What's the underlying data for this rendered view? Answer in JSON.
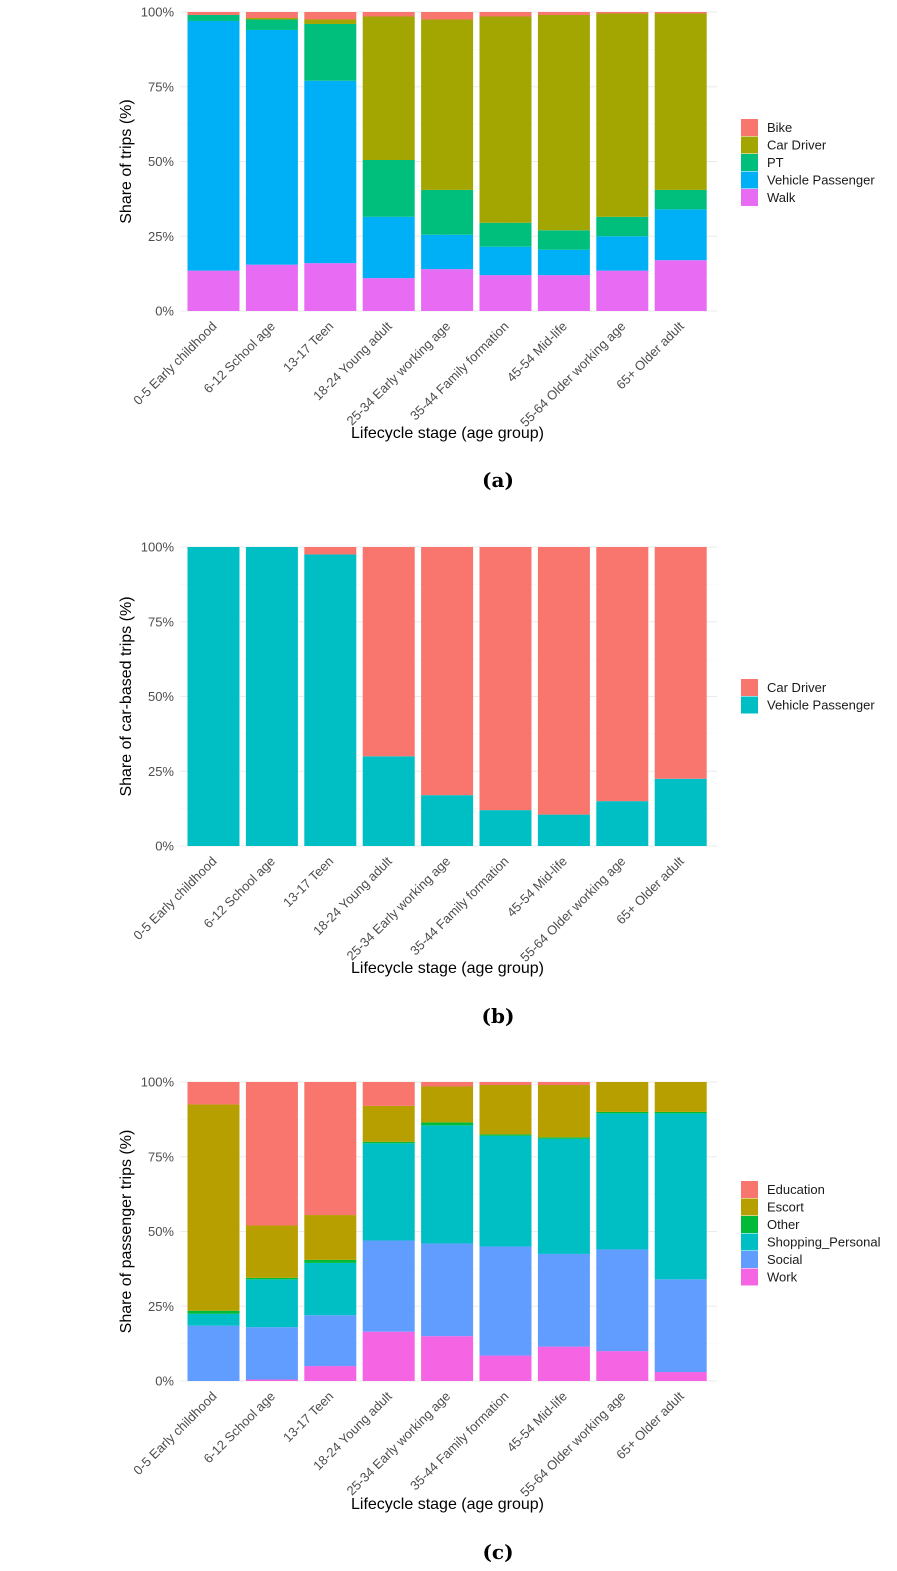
{
  "chart_data": [
    {
      "type": "bar",
      "stacked": true,
      "caption": "(a)",
      "xlabel": "Lifecycle stage (age group)",
      "ylabel": "Share of trips (%)",
      "ylim": [
        0,
        100
      ],
      "y_ticks": [
        "0%",
        "25%",
        "50%",
        "75%",
        "100%"
      ],
      "grid": true,
      "legend_position": "right",
      "categories": [
        "0-5 Early childhood",
        "6-12 School age",
        "13-17 Teen",
        "18-24 Young adult",
        "25-34 Early working age",
        "35-44 Family formation",
        "45-54 Mid-life",
        "55-64 Older working age",
        "65+ Older adult"
      ],
      "series": [
        {
          "name": "Bike",
          "color": "#F8766D",
          "values": [
            1.0,
            2.0,
            2.5,
            1.5,
            2.5,
            1.5,
            1.0,
            0.5,
            0.5
          ]
        },
        {
          "name": "Car Driver",
          "color": "#A3A500",
          "values": [
            0.0,
            0.5,
            1.5,
            48.0,
            57.0,
            69.0,
            72.0,
            68.0,
            59.0
          ]
        },
        {
          "name": "PT",
          "color": "#00BF7D",
          "values": [
            2.0,
            3.5,
            19.0,
            19.0,
            15.0,
            8.0,
            6.5,
            6.5,
            6.5
          ]
        },
        {
          "name": "Vehicle Passenger",
          "color": "#00B0F6",
          "values": [
            83.5,
            78.5,
            61.0,
            20.5,
            11.5,
            9.5,
            8.5,
            11.5,
            17.0
          ]
        },
        {
          "name": "Walk",
          "color": "#E76BF3",
          "values": [
            13.5,
            15.5,
            16.0,
            11.0,
            14.0,
            12.0,
            12.0,
            13.5,
            17.0
          ]
        }
      ]
    },
    {
      "type": "bar",
      "stacked": true,
      "caption": "(b)",
      "xlabel": "Lifecycle stage (age group)",
      "ylabel": "Share of car-based trips (%)",
      "ylim": [
        0,
        100
      ],
      "y_ticks": [
        "0%",
        "25%",
        "50%",
        "75%",
        "100%"
      ],
      "grid": true,
      "legend_position": "right",
      "categories": [
        "0-5 Early childhood",
        "6-12 School age",
        "13-17 Teen",
        "18-24 Young adult",
        "25-34 Early working age",
        "35-44 Family formation",
        "45-54 Mid-life",
        "55-64 Older working age",
        "65+ Older adult"
      ],
      "series": [
        {
          "name": "Car Driver",
          "color": "#F8766D",
          "values": [
            0.0,
            0.0,
            2.5,
            70.0,
            83.0,
            88.0,
            89.5,
            85.0,
            77.5
          ]
        },
        {
          "name": "Vehicle Passenger",
          "color": "#00BFC4",
          "values": [
            100.0,
            100.0,
            97.5,
            30.0,
            17.0,
            12.0,
            10.5,
            15.0,
            22.5
          ]
        }
      ]
    },
    {
      "type": "bar",
      "stacked": true,
      "caption": "(c)",
      "xlabel": "Lifecycle stage (age group)",
      "ylabel": "Share of passenger trips (%)",
      "ylim": [
        0,
        100
      ],
      "y_ticks": [
        "0%",
        "25%",
        "50%",
        "75%",
        "100%"
      ],
      "grid": true,
      "legend_position": "right",
      "categories": [
        "0-5 Early childhood",
        "6-12 School age",
        "13-17 Teen",
        "18-24 Young adult",
        "25-34 Early working age",
        "35-44 Family formation",
        "45-54 Mid-life",
        "55-64 Older working age",
        "65+ Older adult"
      ],
      "series": [
        {
          "name": "Education",
          "color": "#F8766D",
          "values": [
            7.5,
            48.0,
            44.5,
            8.0,
            1.5,
            1.0,
            1.0,
            0.0,
            0.0
          ]
        },
        {
          "name": "Escort",
          "color": "#B79F00",
          "values": [
            69.0,
            17.5,
            15.0,
            12.0,
            12.0,
            16.5,
            17.5,
            10.0,
            10.0
          ]
        },
        {
          "name": "Other",
          "color": "#00BA38",
          "values": [
            1.0,
            0.5,
            1.0,
            0.5,
            1.0,
            0.5,
            0.5,
            0.5,
            0.5
          ]
        },
        {
          "name": "Shopping_Personal",
          "color": "#00BFC4",
          "values": [
            4.0,
            16.0,
            17.5,
            32.5,
            39.5,
            37.0,
            38.5,
            45.5,
            55.5
          ]
        },
        {
          "name": "Social",
          "color": "#619CFF",
          "values": [
            18.5,
            17.5,
            17.0,
            30.5,
            31.0,
            36.5,
            31.0,
            34.0,
            31.0
          ]
        },
        {
          "name": "Work",
          "color": "#F564E3",
          "values": [
            0.0,
            0.5,
            5.0,
            16.5,
            15.0,
            8.5,
            11.5,
            10.0,
            3.0
          ]
        }
      ]
    }
  ]
}
